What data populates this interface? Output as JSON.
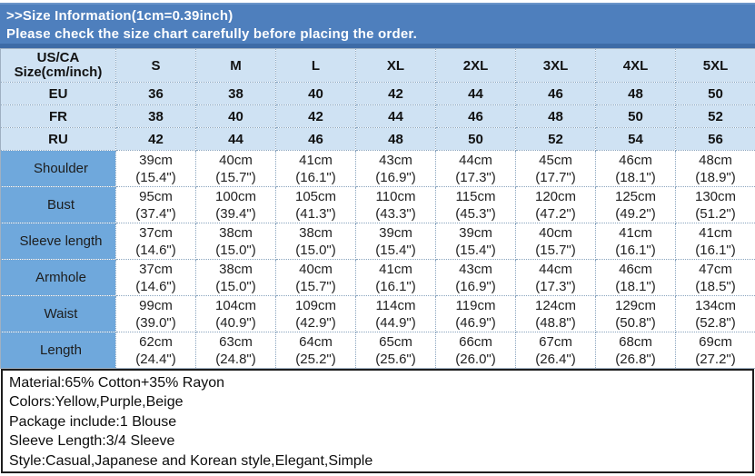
{
  "banner": {
    "title": ">>Size Information(1cm=0.39inch)",
    "subtitle": "Please check the size chart carefully before placing the order."
  },
  "colors": {
    "banner_blue": "#4e7fbd",
    "banner_border_blue": "#3d6ba6",
    "light_blue_rows": "#cfe2f3",
    "label_column_blue": "#6fa8dc",
    "dotted_border": "#8aa5bf",
    "details_border": "#1d1d1d"
  },
  "table": {
    "corner_header": "US/CA\nSize(cm/inch)",
    "size_headers": [
      "S",
      "M",
      "L",
      "XL",
      "2XL",
      "3XL",
      "4XL",
      "5XL"
    ],
    "region_rows": [
      {
        "label": "EU",
        "values": [
          "36",
          "38",
          "40",
          "42",
          "44",
          "46",
          "48",
          "50"
        ]
      },
      {
        "label": "FR",
        "values": [
          "38",
          "40",
          "42",
          "44",
          "46",
          "48",
          "50",
          "52"
        ]
      },
      {
        "label": "RU",
        "values": [
          "42",
          "44",
          "46",
          "48",
          "50",
          "52",
          "54",
          "56"
        ]
      }
    ],
    "measurement_rows": [
      {
        "label": "Shoulder",
        "values": [
          "39cm\n(15.4\")",
          "40cm\n(15.7\")",
          "41cm\n(16.1\")",
          "43cm\n(16.9\")",
          "44cm\n(17.3\")",
          "45cm\n(17.7\")",
          "46cm\n(18.1\")",
          "48cm\n(18.9\")"
        ]
      },
      {
        "label": "Bust",
        "values": [
          "95cm\n(37.4\")",
          "100cm\n(39.4\")",
          "105cm\n(41.3\")",
          "110cm\n(43.3\")",
          "115cm\n(45.3\")",
          "120cm\n(47.2\")",
          "125cm\n(49.2\")",
          "130cm\n(51.2\")"
        ]
      },
      {
        "label": "Sleeve length",
        "values": [
          "37cm\n(14.6\")",
          "38cm\n(15.0\")",
          "38cm\n(15.0\")",
          "39cm\n(15.4\")",
          "39cm\n(15.4\")",
          "40cm\n(15.7\")",
          "41cm\n(16.1\")",
          "41cm\n(16.1\")"
        ]
      },
      {
        "label": "Armhole",
        "values": [
          "37cm\n(14.6\")",
          "38cm\n(15.0\")",
          "40cm\n(15.7\")",
          "41cm\n(16.1\")",
          "43cm\n(16.9\")",
          "44cm\n(17.3\")",
          "46cm\n(18.1\")",
          "47cm\n(18.5\")"
        ]
      },
      {
        "label": "Waist",
        "values": [
          "99cm\n(39.0\")",
          "104cm\n(40.9\")",
          "109cm\n(42.9\")",
          "114cm\n(44.9\")",
          "119cm\n(46.9\")",
          "124cm\n(48.8\")",
          "129cm\n(50.8\")",
          "134cm\n(52.8\")"
        ]
      },
      {
        "label": "Length",
        "values": [
          "62cm\n(24.4\")",
          "63cm\n(24.8\")",
          "64cm\n(25.2\")",
          "65cm\n(25.6\")",
          "66cm\n(26.0\")",
          "67cm\n(26.4\")",
          "68cm\n(26.8\")",
          "69cm\n(27.2\")"
        ]
      }
    ]
  },
  "details": {
    "lines": [
      "Material:65% Cotton+35% Rayon",
      "Colors:Yellow,Purple,Beige",
      "Package include:1 Blouse",
      "Sleeve Length:3/4 Sleeve",
      "Style:Casual,Japanese and Korean style,Elegant,Simple"
    ]
  }
}
